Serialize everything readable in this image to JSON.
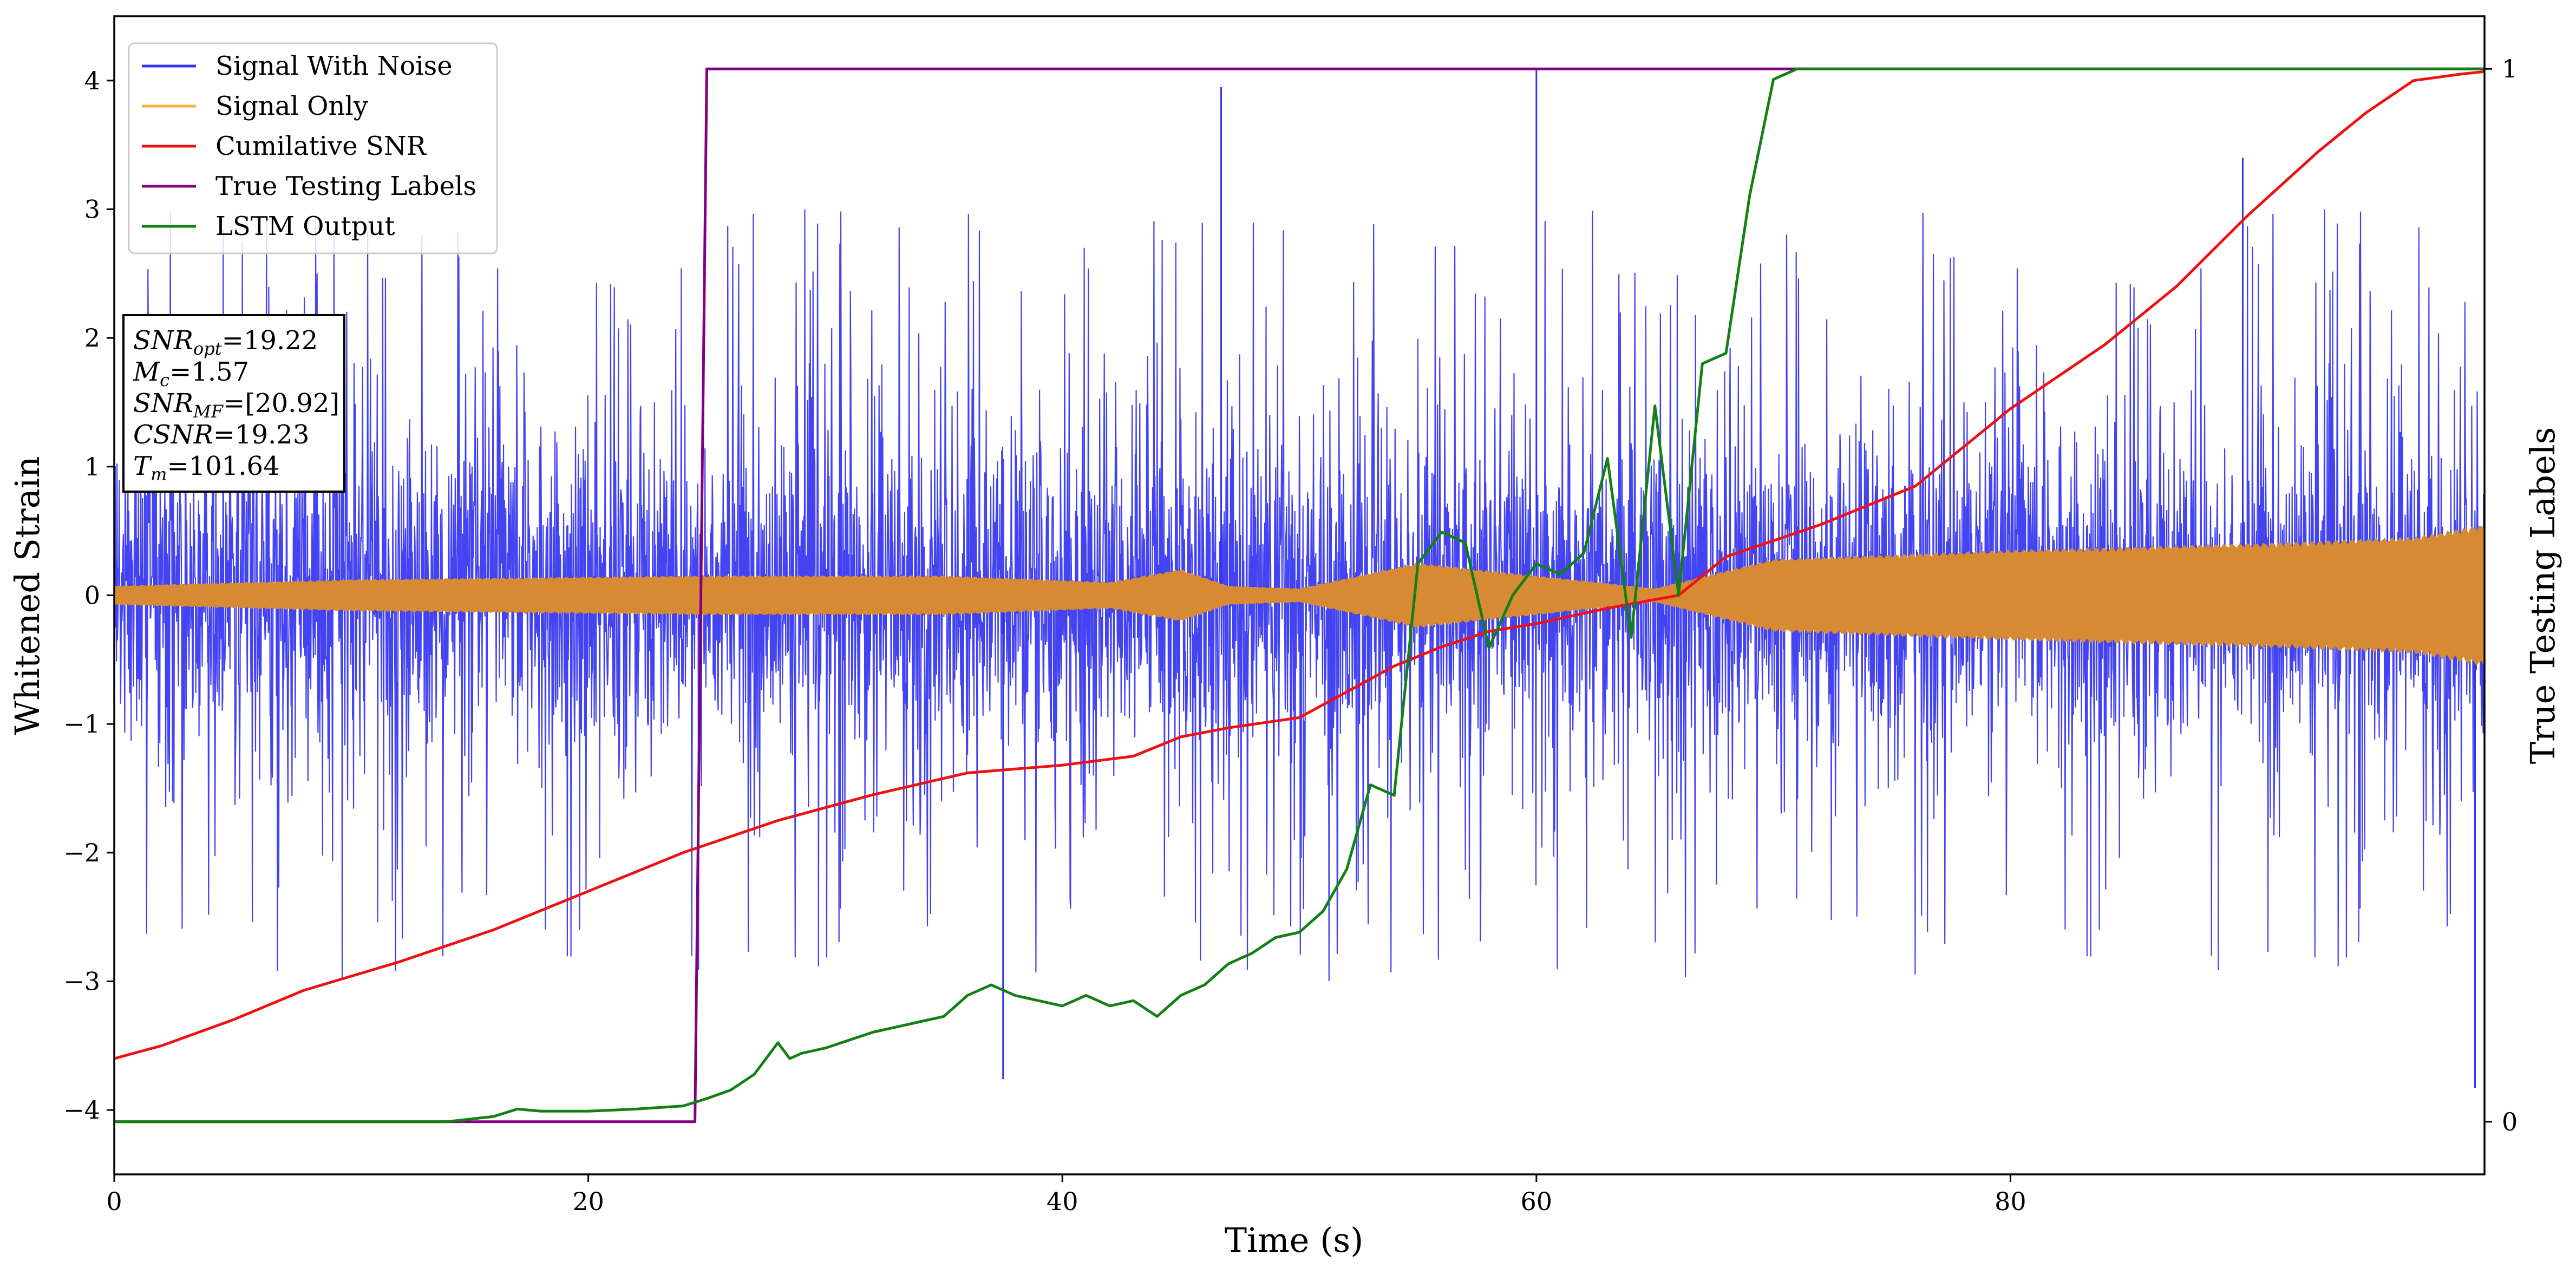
{
  "chart_data": {
    "type": "line",
    "xlabel": "Time (s)",
    "ylabel": "Whitened Strain",
    "y2label": "True Testing Labels",
    "xlim": [
      0,
      100
    ],
    "ylim": [
      -4.5,
      4.5
    ],
    "y2lim": [
      -0.05,
      1.05
    ],
    "x_ticks": [
      0,
      20,
      40,
      60,
      80
    ],
    "y_ticks": [
      -4,
      -3,
      -2,
      -1,
      0,
      1,
      2,
      3,
      4
    ],
    "y2_ticks": [
      0,
      1
    ],
    "legend_position": "top-left",
    "colors": {
      "noise": "#3333f0",
      "signal": "#d68a34",
      "snr": "#ee1111",
      "labels": "#800080",
      "lstm": "#128012"
    },
    "legend": [
      {
        "key": "noise",
        "label": "Signal With Noise"
      },
      {
        "key": "signal",
        "label": "Signal Only"
      },
      {
        "key": "snr",
        "label": "Cumilative SNR"
      },
      {
        "key": "labels",
        "label": "True Testing Labels"
      },
      {
        "key": "lstm",
        "label": "LSTM Output"
      }
    ],
    "annotations": {
      "snr_opt": {
        "name": "SNR",
        "sub": "opt",
        "value": "=19.22"
      },
      "mc": {
        "name": "M",
        "sub": "c",
        "value": "=1.57"
      },
      "snr_mf": {
        "name": "SNR",
        "sub": "MF",
        "value": "=[20.92]"
      },
      "csnr": {
        "name": "CSNR",
        "sub": "",
        "value": "=19.23"
      },
      "tm": {
        "name": "T",
        "sub": "m",
        "value": "=101.64"
      }
    },
    "series": [
      {
        "key": "noise",
        "name": "Signal With Noise",
        "axis": "y",
        "description": "whitened noisy strain, band roughly between -1.5 and 1.6 with spikes from about -3.8 to 4.1",
        "envelope": {
          "core": 1.0,
          "spike_max": 4.1,
          "spike_min": -3.8
        },
        "points": [
          [
            60,
            4.1
          ],
          [
            99.6,
            -3.83
          ],
          [
            37.5,
            -3.76
          ],
          [
            46.7,
            3.95
          ],
          [
            89.8,
            3.4
          ]
        ]
      },
      {
        "key": "signal",
        "name": "Signal Only",
        "axis": "y",
        "envelope": [
          [
            0,
            0.07
          ],
          [
            10,
            0.12
          ],
          [
            25,
            0.15
          ],
          [
            35,
            0.15
          ],
          [
            42,
            0.1
          ],
          [
            45,
            0.2
          ],
          [
            47,
            0.07
          ],
          [
            50,
            0.05
          ],
          [
            55,
            0.25
          ],
          [
            60,
            0.15
          ],
          [
            65,
            0.05
          ],
          [
            70,
            0.28
          ],
          [
            80,
            0.35
          ],
          [
            90,
            0.4
          ],
          [
            97,
            0.45
          ],
          [
            100,
            0.55
          ]
        ]
      },
      {
        "key": "snr",
        "name": "Cumilative SNR",
        "axis": "y",
        "x": [
          0,
          2,
          5,
          8,
          12,
          16,
          20,
          24,
          28,
          32,
          36,
          40,
          43,
          45,
          47,
          50,
          52,
          54,
          56,
          58,
          60,
          63,
          66,
          68,
          72,
          76,
          80,
          84,
          87,
          90,
          93,
          95,
          97,
          99,
          100
        ],
        "y": [
          -3.6,
          -3.5,
          -3.3,
          -3.07,
          -2.85,
          -2.6,
          -2.3,
          -2.0,
          -1.75,
          -1.55,
          -1.38,
          -1.32,
          -1.25,
          -1.1,
          -1.03,
          -0.95,
          -0.75,
          -0.55,
          -0.4,
          -0.28,
          -0.22,
          -0.1,
          0.0,
          0.3,
          0.55,
          0.85,
          1.45,
          1.95,
          2.4,
          2.95,
          3.45,
          3.75,
          4.0,
          4.05,
          4.07
        ]
      },
      {
        "key": "labels",
        "name": "True Testing Labels",
        "axis": "y2",
        "x": [
          0,
          24.5,
          25.0,
          100
        ],
        "y": [
          0,
          0,
          1,
          1
        ]
      },
      {
        "key": "lstm",
        "name": "LSTM Output",
        "axis": "y2",
        "x": [
          0,
          14,
          16,
          17,
          18,
          20,
          22,
          24,
          25,
          26,
          27,
          28,
          28.5,
          29,
          30,
          32,
          34,
          35,
          36,
          37,
          38,
          39,
          40,
          41,
          42,
          43,
          44,
          45,
          46,
          47,
          48,
          49,
          50,
          51,
          52,
          53,
          54,
          55,
          56,
          57,
          58,
          59,
          60,
          61,
          62,
          63,
          64,
          65,
          66,
          67,
          68,
          69,
          70,
          71,
          72,
          73,
          74,
          76,
          80,
          90,
          100
        ],
        "y": [
          0,
          0.0,
          0.005,
          0.012,
          0.01,
          0.01,
          0.012,
          0.015,
          0.022,
          0.03,
          0.045,
          0.075,
          0.06,
          0.065,
          0.07,
          0.085,
          0.095,
          0.1,
          0.12,
          0.13,
          0.12,
          0.115,
          0.11,
          0.12,
          0.11,
          0.115,
          0.1,
          0.12,
          0.13,
          0.15,
          0.16,
          0.175,
          0.18,
          0.2,
          0.24,
          0.32,
          0.31,
          0.53,
          0.56,
          0.55,
          0.45,
          0.5,
          0.53,
          0.52,
          0.54,
          0.63,
          0.46,
          0.68,
          0.5,
          0.72,
          0.73,
          0.88,
          0.99,
          1.0,
          1.0,
          1.0,
          1.0,
          1.0,
          1.0,
          1.0,
          1.0
        ]
      }
    ]
  }
}
